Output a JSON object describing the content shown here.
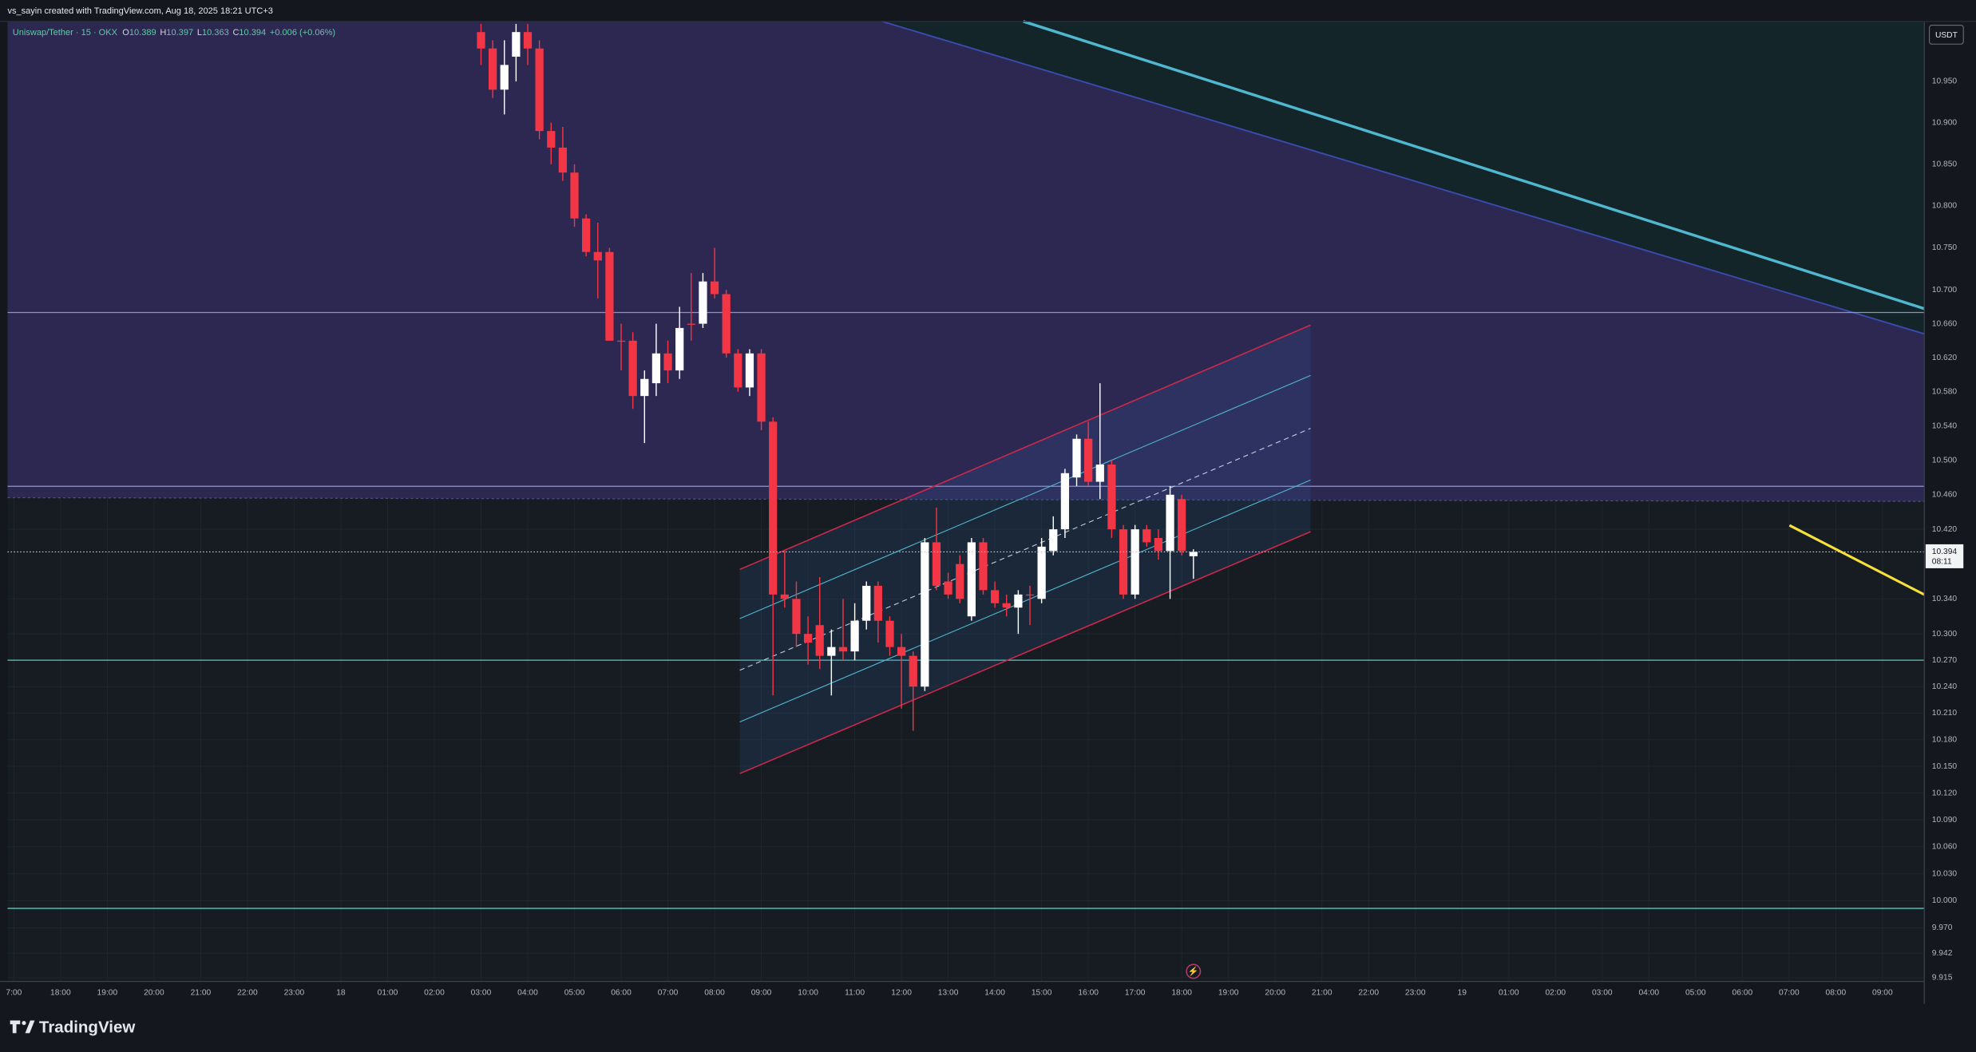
{
  "header": {
    "attribution": "vs_sayin created with TradingView.com, Aug 18, 2025 18:21 UTC+3"
  },
  "footer": {
    "brand": "TradingView"
  },
  "chart_data": {
    "type": "candlestick",
    "title": "Uniswap/Tether · 15 · OKX",
    "legend": [
      {
        "label": "O",
        "value": 10.389
      },
      {
        "label": "H",
        "value": 10.397
      },
      {
        "label": "L",
        "value": 10.363
      },
      {
        "label": "C",
        "value": 10.394
      }
    ],
    "change": "+0.006 (+0.06%)",
    "currency": "USDT",
    "last_price": 10.394,
    "countdown": "08:11",
    "up_color": "#ffffff",
    "down_color": "#f23645",
    "log_scale": true,
    "grid": true,
    "time_labels": [
      "7:00",
      "18:00",
      "19:00",
      "20:00",
      "21:00",
      "22:00",
      "23:00",
      "18",
      "01:00",
      "02:00",
      "03:00",
      "04:00",
      "05:00",
      "06:00",
      "07:00",
      "08:00",
      "09:00",
      "10:00",
      "11:00",
      "12:00",
      "13:00",
      "14:00",
      "15:00",
      "16:00",
      "17:00",
      "18:00",
      "19:00",
      "20:00",
      "21:00",
      "22:00",
      "23:00",
      "19",
      "01:00",
      "02:00",
      "03:00",
      "04:00",
      "05:00",
      "06:00",
      "07:00",
      "08:00",
      "09:00"
    ],
    "ylim": [
      9.911,
      11.023
    ],
    "yticks": [
      {
        "value": 10.95,
        "label": "10.950"
      },
      {
        "value": 10.9,
        "label": "10.900"
      },
      {
        "value": 10.85,
        "label": "10.850"
      },
      {
        "value": 10.8,
        "label": "10.800"
      },
      {
        "value": 10.75,
        "label": "10.750"
      },
      {
        "value": 10.7,
        "label": "10.700"
      },
      {
        "value": 10.66,
        "label": "10.660"
      },
      {
        "value": 10.62,
        "label": "10.620"
      },
      {
        "value": 10.58,
        "label": "10.580"
      },
      {
        "value": 10.54,
        "label": "10.540"
      },
      {
        "value": 10.5,
        "label": "10.500"
      },
      {
        "value": 10.46,
        "label": "10.460"
      },
      {
        "value": 10.42,
        "label": "10.420"
      },
      {
        "value": 10.34,
        "label": "10.340"
      },
      {
        "value": 10.3,
        "label": "10.300"
      },
      {
        "value": 10.27,
        "label": "10.270"
      },
      {
        "value": 10.24,
        "label": "10.240"
      },
      {
        "value": 10.21,
        "label": "10.210"
      },
      {
        "value": 10.18,
        "label": "10.180"
      },
      {
        "value": 10.15,
        "label": "10.150"
      },
      {
        "value": 10.12,
        "label": "10.120"
      },
      {
        "value": 10.09,
        "label": "10.090"
      },
      {
        "value": 10.06,
        "label": "10.060"
      },
      {
        "value": 10.03,
        "label": "10.030"
      },
      {
        "value": 10.0,
        "label": "10.000"
      },
      {
        "value": 9.97,
        "label": "9.970"
      },
      9.942,
      9.915
    ],
    "open": [
      11.01,
      10.99,
      10.94,
      10.98,
      11.01,
      10.99,
      10.89,
      10.87,
      10.84,
      10.785,
      10.745,
      10.745,
      10.64,
      10.64,
      10.575,
      10.59,
      10.625,
      10.605,
      10.66,
      10.66,
      10.71,
      10.695,
      10.625,
      10.585,
      10.625,
      10.545,
      10.345,
      10.34,
      10.3,
      10.31,
      10.275,
      10.285,
      10.28,
      10.315,
      10.355,
      10.315,
      10.285,
      10.275,
      10.24,
      10.405,
      10.36,
      10.38,
      10.32,
      10.405,
      10.35,
      10.335,
      10.33,
      10.345,
      10.34,
      10.395,
      10.42,
      10.48,
      10.525,
      10.475,
      10.495,
      10.42,
      10.345,
      10.42,
      10.41,
      10.395,
      10.455,
      10.389
    ],
    "high": [
      11.02,
      11.0,
      11.0,
      11.02,
      11.02,
      11.0,
      10.9,
      10.895,
      10.85,
      10.79,
      10.78,
      10.75,
      10.66,
      10.65,
      10.605,
      10.66,
      10.64,
      10.68,
      10.72,
      10.72,
      10.75,
      10.7,
      10.63,
      10.63,
      10.63,
      10.55,
      10.395,
      10.36,
      10.32,
      10.365,
      10.305,
      10.34,
      10.335,
      10.36,
      10.36,
      10.32,
      10.3,
      10.28,
      10.41,
      10.445,
      10.37,
      10.39,
      10.41,
      10.41,
      10.36,
      10.345,
      10.35,
      10.355,
      10.41,
      10.435,
      10.49,
      10.53,
      10.545,
      10.59,
      10.5,
      10.425,
      10.425,
      10.425,
      10.42,
      10.47,
      10.46,
      10.397
    ],
    "low": [
      10.97,
      10.93,
      10.91,
      10.95,
      10.97,
      10.88,
      10.85,
      10.83,
      10.775,
      10.74,
      10.69,
      10.64,
      10.605,
      10.56,
      10.52,
      10.575,
      10.59,
      10.595,
      10.64,
      10.655,
      10.69,
      10.62,
      10.58,
      10.575,
      10.535,
      10.23,
      10.33,
      10.285,
      10.265,
      10.26,
      10.23,
      10.27,
      10.27,
      10.305,
      10.29,
      10.275,
      10.215,
      10.19,
      10.235,
      10.35,
      10.34,
      10.335,
      10.315,
      10.345,
      10.33,
      10.32,
      10.3,
      10.31,
      10.335,
      10.39,
      10.41,
      10.47,
      10.47,
      10.455,
      10.41,
      10.34,
      10.34,
      10.4,
      10.385,
      10.34,
      10.39,
      10.363
    ],
    "close": [
      10.99,
      10.94,
      10.97,
      11.01,
      10.99,
      10.89,
      10.87,
      10.84,
      10.785,
      10.745,
      10.735,
      10.64,
      10.64,
      10.575,
      10.595,
      10.625,
      10.605,
      10.655,
      10.66,
      10.71,
      10.695,
      10.625,
      10.585,
      10.625,
      10.545,
      10.345,
      10.34,
      10.3,
      10.29,
      10.275,
      10.285,
      10.28,
      10.315,
      10.355,
      10.315,
      10.285,
      10.275,
      10.24,
      10.405,
      10.355,
      10.345,
      10.34,
      10.405,
      10.35,
      10.335,
      10.33,
      10.345,
      10.345,
      10.4,
      10.42,
      10.485,
      10.525,
      10.475,
      10.495,
      10.42,
      10.345,
      10.42,
      10.405,
      10.395,
      10.46,
      10.395,
      10.394
    ]
  }
}
